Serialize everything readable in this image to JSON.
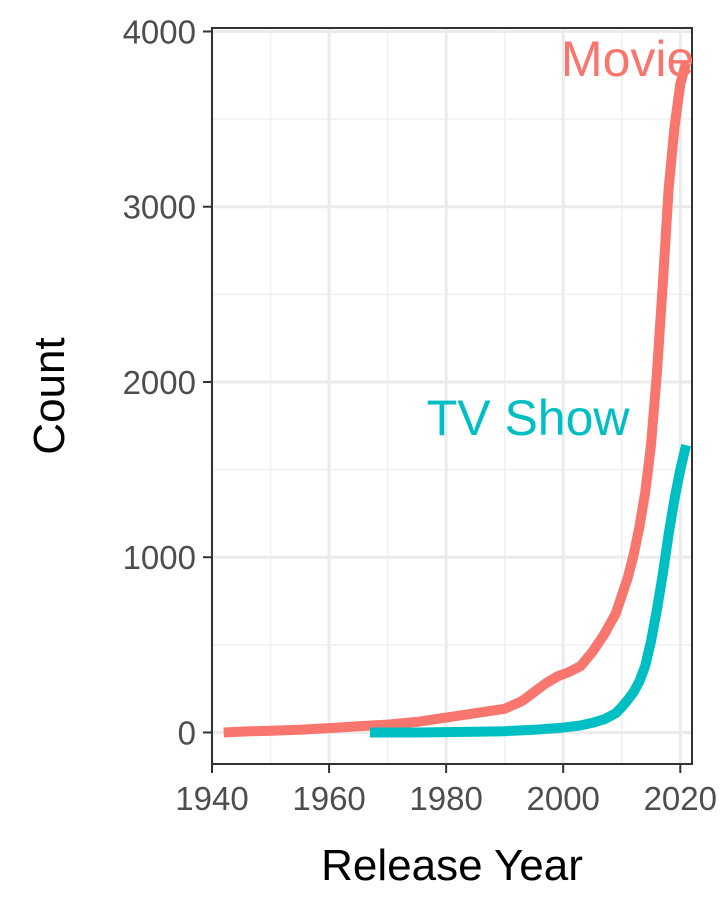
{
  "chart_data": {
    "type": "line",
    "title": "",
    "xlabel": "Release Year",
    "ylabel": "Count",
    "xlim": [
      1940,
      2022
    ],
    "ylim": [
      -180,
      4020
    ],
    "x_ticks": [
      1940,
      1960,
      1980,
      2000,
      2020
    ],
    "x_tick_labels": [
      "1940",
      "1960",
      "1980",
      "2000",
      "2020"
    ],
    "y_ticks": [
      0,
      1000,
      2000,
      3000,
      4000
    ],
    "y_tick_labels": [
      "0",
      "1000",
      "2000",
      "3000",
      "4000"
    ],
    "grid": true,
    "legend": "none (direct labels)",
    "series": [
      {
        "name": "Movie",
        "color": "#F8766D",
        "label_at": [
          2011,
          3850
        ],
        "x": [
          1942,
          1945,
          1950,
          1955,
          1960,
          1965,
          1970,
          1975,
          1980,
          1985,
          1990,
          1993,
          1995,
          1997,
          1999,
          2001,
          2003,
          2005,
          2007,
          2009,
          2011,
          2012,
          2013,
          2014,
          2015,
          2016,
          2017,
          2018,
          2019,
          2020,
          2021
        ],
        "values": [
          0,
          5,
          10,
          15,
          25,
          35,
          45,
          60,
          85,
          110,
          135,
          180,
          230,
          280,
          320,
          345,
          380,
          460,
          560,
          680,
          880,
          1010,
          1170,
          1370,
          1640,
          2050,
          2550,
          3100,
          3450,
          3700,
          3820
        ]
      },
      {
        "name": "TV Show",
        "color": "#00BFC4",
        "label_at": [
          1994,
          1800
        ],
        "x": [
          1967,
          1970,
          1975,
          1980,
          1985,
          1990,
          1995,
          2000,
          2003,
          2005,
          2007,
          2009,
          2010,
          2011,
          2012,
          2013,
          2014,
          2015,
          2016,
          2017,
          2018,
          2019,
          2020,
          2021
        ],
        "values": [
          0,
          0,
          0,
          2,
          4,
          7,
          15,
          28,
          40,
          55,
          75,
          110,
          145,
          185,
          230,
          290,
          380,
          520,
          700,
          900,
          1130,
          1330,
          1500,
          1640
        ]
      }
    ]
  }
}
